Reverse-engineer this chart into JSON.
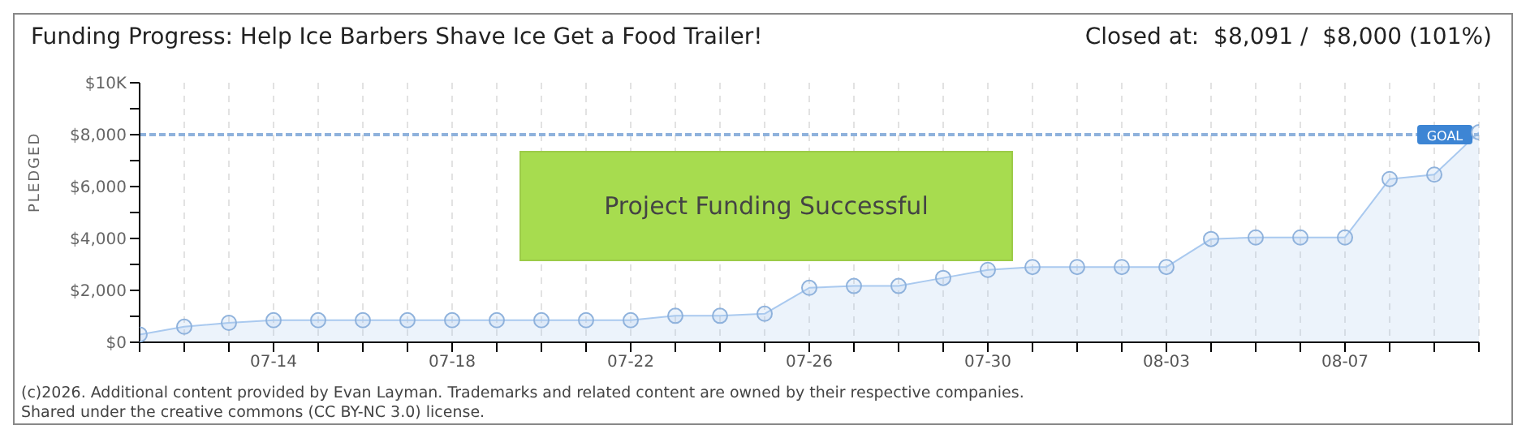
{
  "chart_data": {
    "type": "area",
    "title": "Funding Progress: Help Ice Barbers Shave Ice Get a Food Trailer!",
    "subtitle": "Closed at:  $8,091 /  $8,000 (101%)",
    "ylabel": "PLEDGED",
    "categories": [
      null,
      null,
      null,
      "07-14",
      null,
      null,
      null,
      "07-18",
      null,
      null,
      null,
      "07-22",
      null,
      null,
      null,
      "07-26",
      null,
      null,
      null,
      "07-30",
      null,
      null,
      null,
      "08-03",
      null,
      null,
      null,
      "08-07",
      null,
      null,
      null
    ],
    "series": [
      {
        "color": "#a9c9ef",
        "values": [
          300,
          600,
          750,
          850,
          850,
          850,
          850,
          850,
          850,
          850,
          850,
          850,
          1020,
          1020,
          1100,
          2100,
          2170,
          2170,
          2480,
          2790,
          2900,
          2900,
          2900,
          2900,
          3980,
          4040,
          4040,
          4040,
          6290,
          6460,
          8090
        ]
      }
    ],
    "ylim": [
      0,
      10000
    ],
    "yticks": [
      {
        "value": 0,
        "label": "$0"
      },
      {
        "value": 1000,
        "label": null
      },
      {
        "value": 2000,
        "label": "$2,000"
      },
      {
        "value": 3000,
        "label": null
      },
      {
        "value": 4000,
        "label": "$4,000"
      },
      {
        "value": 5000,
        "label": null
      },
      {
        "value": 6000,
        "label": "$6,000"
      },
      {
        "value": 7000,
        "label": null
      },
      {
        "value": 8000,
        "label": "$8,000"
      },
      {
        "value": 9000,
        "label": null
      },
      {
        "value": 10000,
        "label": "$10K"
      }
    ],
    "ref_lines": [
      {
        "axis": "y",
        "value": 8000,
        "label": "GOAL",
        "color": "#8fb2dc",
        "line_style": "dashed"
      }
    ],
    "grid": true,
    "marker": "circle",
    "legend": false,
    "annotations": [
      "Project Funding Successful",
      "(c)2026. Additional content provided by Evan Layman. Trademarks and related content are owned by their respective companies.",
      "Shared under the creative commons (CC BY-NC 3.0) license."
    ]
  }
}
